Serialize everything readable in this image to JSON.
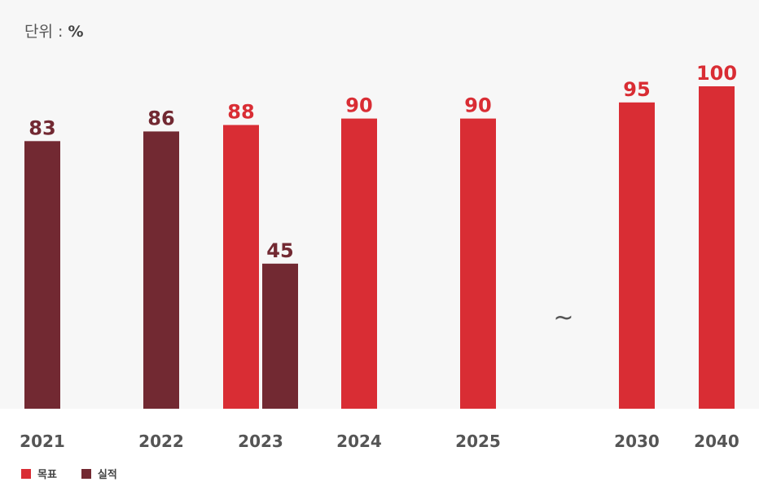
{
  "unit": {
    "prefix": "단위 : ",
    "symbol": "%"
  },
  "colors": {
    "target": "#d92d34",
    "actual": "#722932",
    "panel": "#f7f7f7"
  },
  "legend": [
    {
      "name": "목표",
      "color": "#d92d34"
    },
    {
      "name": "실적",
      "color": "#722932"
    }
  ],
  "break_symbol": "~",
  "chart_data": {
    "type": "bar",
    "categories": [
      "2021",
      "2022",
      "2023",
      "2024",
      "2025",
      "",
      "2030",
      "2040"
    ],
    "series": [
      {
        "name": "목표",
        "values": [
          null,
          null,
          88,
          90,
          90,
          null,
          95,
          100
        ]
      },
      {
        "name": "실적",
        "values": [
          83,
          86,
          45,
          null,
          null,
          null,
          null,
          null
        ]
      }
    ],
    "ylim": [
      0,
      100
    ],
    "grid": false,
    "legend_position": "bottom-left"
  }
}
